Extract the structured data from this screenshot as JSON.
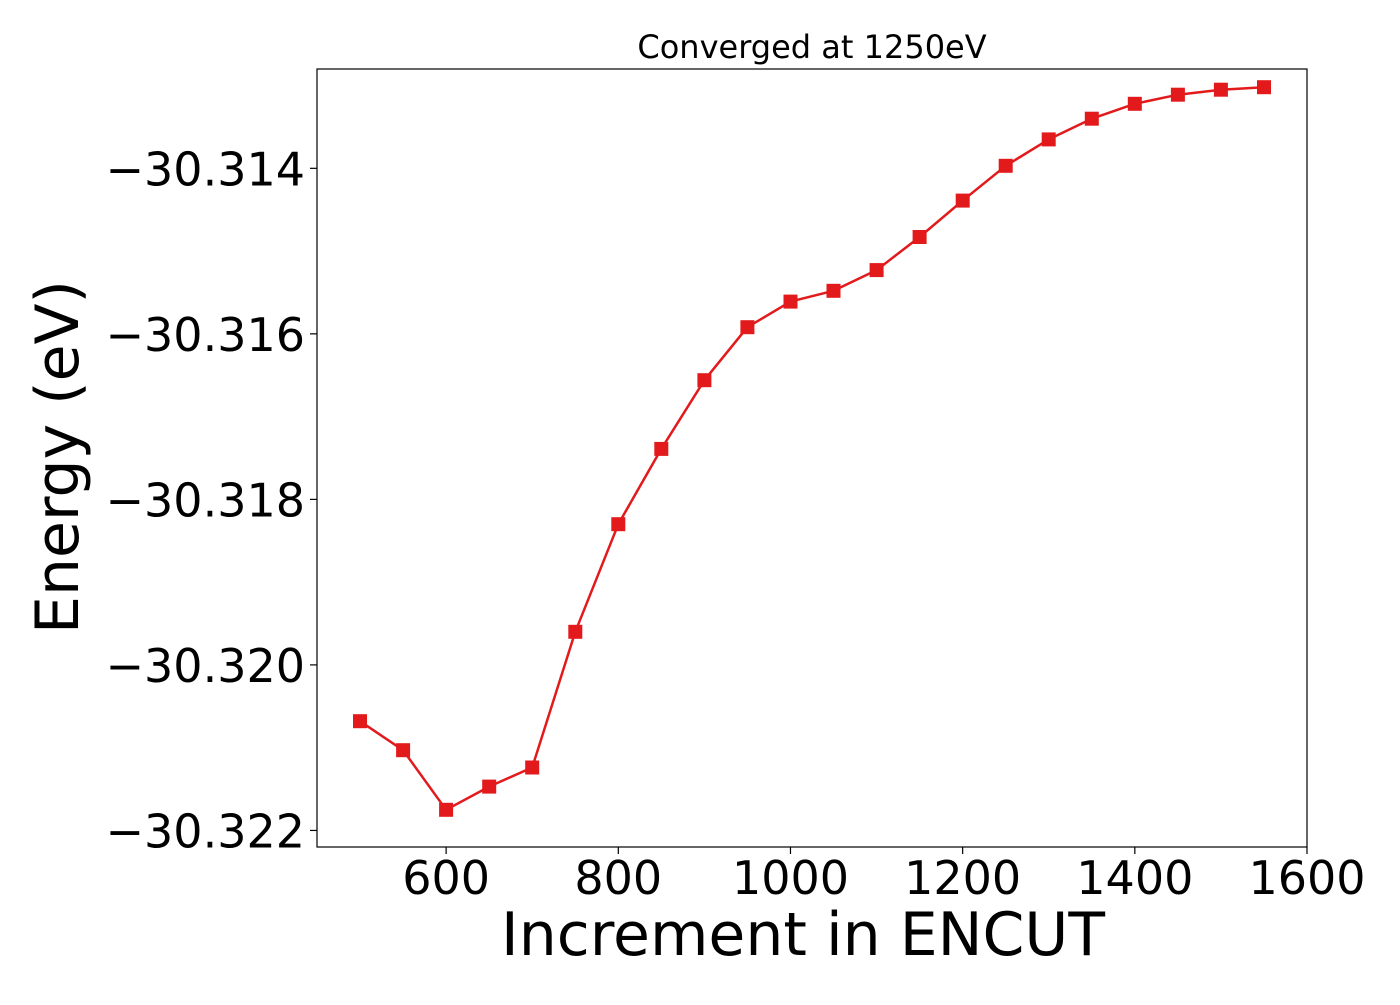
{
  "chart_data": {
    "type": "line",
    "title": "Converged at 1250eV",
    "xlabel": "Increment in ENCUT",
    "ylabel": "Energy (eV)",
    "xlim": [
      450,
      1600
    ],
    "ylim": [
      -30.3222,
      -30.3128
    ],
    "x_ticks": [
      600,
      800,
      1000,
      1200,
      1400,
      1600
    ],
    "x_tick_labels": [
      "600",
      "800",
      "1000",
      "1200",
      "1400",
      "1600"
    ],
    "y_ticks": [
      -30.314,
      -30.316,
      -30.318,
      -30.32,
      -30.322
    ],
    "y_tick_labels": [
      "−30.314",
      "−30.316",
      "−30.318",
      "−30.320",
      "−30.322"
    ],
    "grid": false,
    "series": [
      {
        "color": "#e31a1c",
        "marker": "square",
        "x": [
          500,
          550,
          600,
          650,
          700,
          750,
          800,
          850,
          900,
          950,
          1000,
          1050,
          1100,
          1150,
          1200,
          1250,
          1300,
          1350,
          1400,
          1450,
          1500,
          1550
        ],
        "y": [
          -30.32068,
          -30.32103,
          -30.32175,
          -30.32147,
          -30.32124,
          -30.3196,
          -30.3183,
          -30.31739,
          -30.31656,
          -30.31592,
          -30.31561,
          -30.31548,
          -30.31523,
          -30.31483,
          -30.31439,
          -30.31397,
          -30.31365,
          -30.3134,
          -30.31322,
          -30.31311,
          -30.31305,
          -30.31302
        ]
      }
    ]
  }
}
